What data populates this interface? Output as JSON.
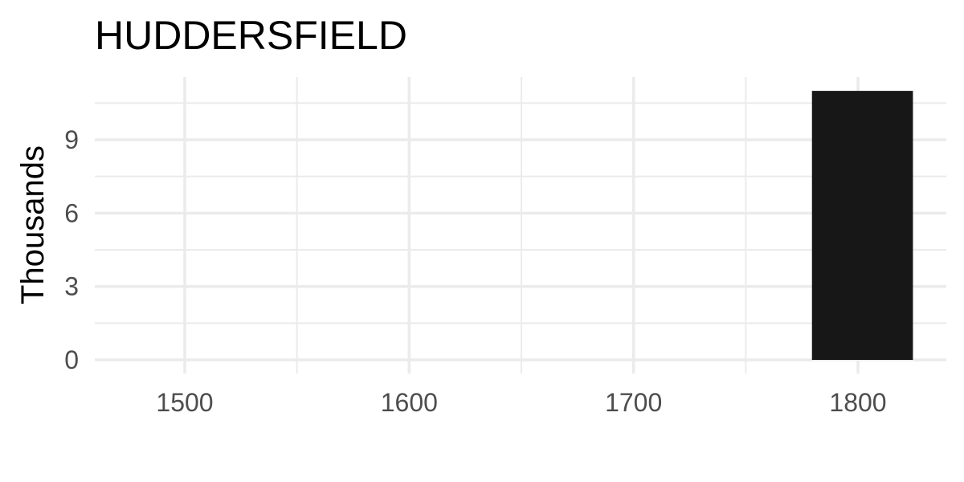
{
  "chart_data": {
    "type": "bar",
    "title": "HUDDERSFIELD",
    "xlabel": "",
    "ylabel": "Thousands",
    "x": [
      1802
    ],
    "values": [
      11.0
    ],
    "bar_width": 45,
    "xlim": [
      1460,
      1840
    ],
    "ylim": [
      0,
      11.5
    ],
    "x_ticks": [
      1500,
      1600,
      1700,
      1800
    ],
    "x_tick_labels": [
      "1500",
      "1600",
      "1700",
      "1800"
    ],
    "x_minor_ticks": [
      1550,
      1650,
      1750
    ],
    "y_ticks": [
      0,
      3,
      6,
      9
    ],
    "y_tick_labels": [
      "0",
      "3",
      "6",
      "9"
    ],
    "y_minor_ticks": [
      1.5,
      4.5,
      7.5,
      10.5
    ],
    "grid": true,
    "legend": "none",
    "colors": {
      "bar": "#171717",
      "grid": "#ebebeb",
      "tick_text": "#4d4d4d",
      "title_text": "#000000",
      "background": "#ffffff"
    }
  }
}
